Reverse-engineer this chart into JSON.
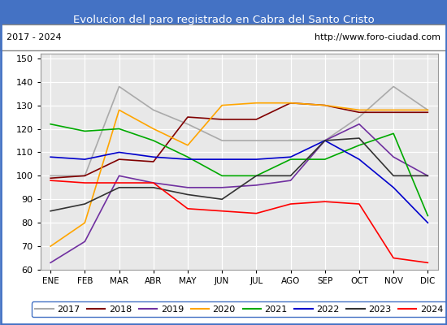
{
  "title": "Evolucion del paro registrado en Cabra del Santo Cristo",
  "subtitle_left": "2017 - 2024",
  "subtitle_right": "http://www.foro-ciudad.com",
  "title_color": "#4472C4",
  "months": [
    "ENE",
    "FEB",
    "MAR",
    "ABR",
    "MAY",
    "JUN",
    "JUL",
    "AGO",
    "SEP",
    "OCT",
    "NOV",
    "DIC"
  ],
  "ylim": [
    60,
    152
  ],
  "yticks": [
    60,
    70,
    80,
    90,
    100,
    110,
    120,
    130,
    140,
    150
  ],
  "series": {
    "2017": {
      "color": "#aaaaaa",
      "data": [
        100,
        100,
        138,
        128,
        122,
        115,
        115,
        115,
        115,
        125,
        138,
        128
      ]
    },
    "2018": {
      "color": "#800000",
      "data": [
        99,
        100,
        107,
        106,
        125,
        124,
        124,
        131,
        130,
        127,
        127,
        127
      ]
    },
    "2019": {
      "color": "#7030A0",
      "data": [
        63,
        72,
        100,
        97,
        95,
        95,
        96,
        98,
        115,
        122,
        108,
        100
      ]
    },
    "2020": {
      "color": "#FFA500",
      "data": [
        70,
        80,
        128,
        120,
        113,
        130,
        131,
        131,
        130,
        128,
        128,
        128
      ]
    },
    "2021": {
      "color": "#00AA00",
      "data": [
        122,
        119,
        120,
        115,
        108,
        100,
        100,
        107,
        107,
        113,
        118,
        83
      ]
    },
    "2022": {
      "color": "#0000CC",
      "data": [
        108,
        107,
        110,
        108,
        107,
        107,
        107,
        108,
        115,
        107,
        95,
        80
      ]
    },
    "2023": {
      "color": "#333333",
      "data": [
        85,
        88,
        95,
        95,
        92,
        90,
        100,
        100,
        115,
        116,
        100,
        100
      ]
    },
    "2024": {
      "color": "#FF0000",
      "data": [
        98,
        97,
        97,
        97,
        86,
        85,
        84,
        88,
        89,
        88,
        65,
        63
      ]
    }
  },
  "background_color": "#FFFFFF",
  "plot_bg_color": "#E8E8E8",
  "border_color": "#4472C4",
  "header_bg": "#4472C4"
}
